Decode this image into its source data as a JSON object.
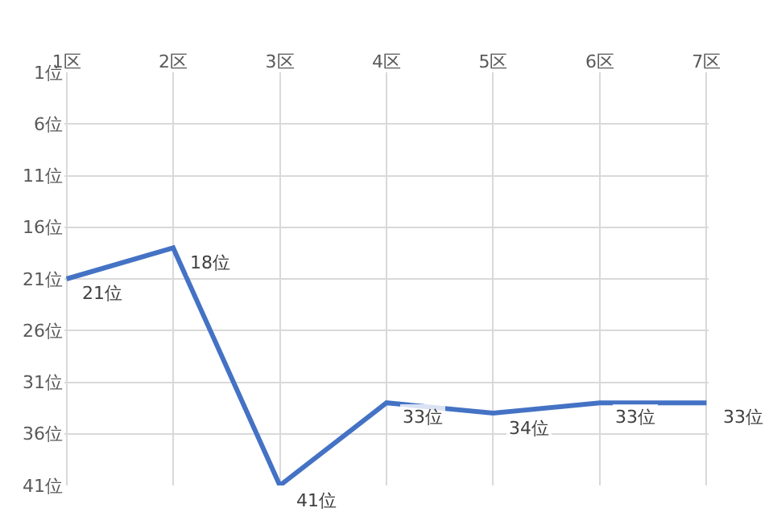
{
  "chart_data": {
    "type": "line",
    "categories": [
      "1区",
      "2区",
      "3区",
      "4区",
      "5区",
      "6区",
      "7区"
    ],
    "series": [
      {
        "color": "#4472c4",
        "values": [
          21,
          18,
          41,
          33,
          34,
          33,
          33
        ],
        "value_labels": [
          "21位",
          "18位",
          "41位",
          "33位",
          "34位",
          "33位",
          "33位"
        ]
      }
    ],
    "ylim": [
      41,
      1
    ],
    "yticks": [
      {
        "value": 1,
        "label": "1位"
      },
      {
        "value": 6,
        "label": "6位"
      },
      {
        "value": 11,
        "label": "11位"
      },
      {
        "value": 16,
        "label": "16位"
      },
      {
        "value": 21,
        "label": "21位"
      },
      {
        "value": 26,
        "label": "26位"
      },
      {
        "value": 31,
        "label": "31位"
      },
      {
        "value": 36,
        "label": "36位"
      },
      {
        "value": 41,
        "label": "41位"
      }
    ],
    "grid": true,
    "marker": "none",
    "line_style": "solid"
  }
}
